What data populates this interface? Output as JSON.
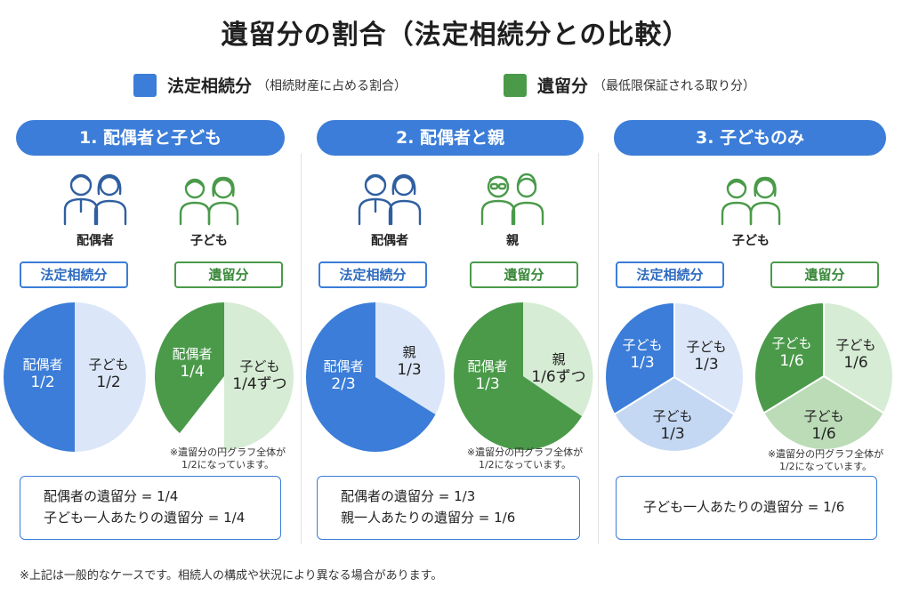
{
  "title": "遺留分の割合（法定相続分との比較）",
  "legend": {
    "statutory": {
      "label": "法定相続分",
      "note": "（相続財産に占める割合）",
      "color": "#3b7dd8"
    },
    "reserved": {
      "label": "遺留分",
      "note": "（最低限保証される取り分）",
      "color": "#4a9a4a"
    }
  },
  "panels": [
    {
      "header": "1. 配偶者と子ども",
      "person_labels": [
        "配偶者",
        "子ども"
      ],
      "tags": [
        "法定相続分",
        "遺留分"
      ],
      "pie_statutory": [
        {
          "label": "配偶者",
          "value": "1/2"
        },
        {
          "label": "子ども",
          "value": "1/2"
        }
      ],
      "pie_reserved": [
        {
          "label": "配偶者",
          "value": "1/4"
        },
        {
          "label": "子ども",
          "value": "1/4ずつ"
        }
      ],
      "note": [
        "※遺留分の円グラフ全体が",
        "1/2になっています。"
      ],
      "summary": [
        "配偶者の遺留分 = 1/4",
        "子ども一人あたりの遺留分 = 1/4"
      ]
    },
    {
      "header": "2. 配偶者と親",
      "person_labels": [
        "配偶者",
        "親"
      ],
      "tags": [
        "法定相続分",
        "遺留分"
      ],
      "pie_statutory": [
        {
          "label": "配偶者",
          "value": "2/3"
        },
        {
          "label": "親",
          "value": "1/3"
        }
      ],
      "pie_reserved": [
        {
          "label": "配偶者",
          "value": "1/3"
        },
        {
          "label": "親",
          "value": "1/6ずつ"
        }
      ],
      "note": [
        "※遺留分の円グラフ全体が",
        "1/2になっています。"
      ],
      "summary": [
        "配偶者の遺留分 = 1/3",
        "親一人あたりの遺留分 = 1/6"
      ]
    },
    {
      "header": "3. 子どものみ",
      "person_labels": [
        "子ども"
      ],
      "tags": [
        "法定相続分",
        "遺留分"
      ],
      "pie_statutory": [
        {
          "label": "子ども",
          "value": "1/3"
        },
        {
          "label": "子ども",
          "value": "1/3"
        },
        {
          "label": "子ども",
          "value": "1/3"
        }
      ],
      "pie_reserved": [
        {
          "label": "子ども",
          "value": "1/6"
        },
        {
          "label": "子ども",
          "value": "1/6"
        },
        {
          "label": "子ども",
          "value": "1/6"
        }
      ],
      "note": [
        "※遺留分の円グラフ全体が",
        "1/2になっています。"
      ],
      "summary": [
        "子ども一人あたりの遺留分 = 1/6"
      ]
    }
  ],
  "footnote": "※上記は一般的なケースです。相続人の構成や状況により異なる場合があります。"
}
